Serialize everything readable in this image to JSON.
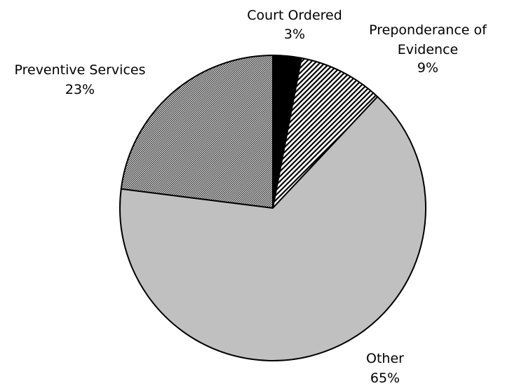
{
  "chart_data": {
    "type": "pie",
    "title": "",
    "start_angle_deg": 0,
    "direction": "clockwise",
    "legend": "none",
    "slices": [
      {
        "label": "Court Ordered",
        "value": 3,
        "value_label": "3%",
        "fill": "solid",
        "color": "#000000"
      },
      {
        "label": "Preponderance of Evidence",
        "value": 9,
        "value_label": "9%",
        "fill": "diagonal-hatch",
        "color": "#000000"
      },
      {
        "label": "Other",
        "value": 65,
        "value_label": "65%",
        "fill": "solid",
        "color": "#c0c0c0"
      },
      {
        "label": "Preventive Services",
        "value": 23,
        "value_label": "23%",
        "fill": "fine-checker",
        "color": "#7a7a7a"
      }
    ]
  }
}
